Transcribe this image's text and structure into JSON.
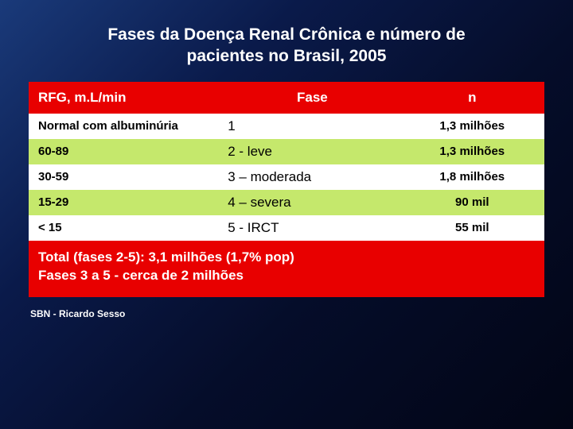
{
  "title_line1": "Fases da Doença Renal Crônica e número de",
  "title_line2": "pacientes no Brasil, 2005",
  "table": {
    "headers": {
      "col1": "RFG, m.L/min",
      "col2": "Fase",
      "col3": "n"
    },
    "rows": [
      {
        "col1": "Normal com albuminúria",
        "col2": "1",
        "col3": "1,3 milhões",
        "bg": "row-white"
      },
      {
        "col1": "60-89",
        "col2": "2 - leve",
        "col3": "1,3 milhões",
        "bg": "row-green"
      },
      {
        "col1": "30-59",
        "col2": "3 – moderada",
        "col3": "1,8 milhões",
        "bg": "row-white"
      },
      {
        "col1": "15-29",
        "col2": "4 – severa",
        "col3": "90 mil",
        "bg": "row-green"
      },
      {
        "col1": "< 15",
        "col2": "5 - IRCT",
        "col3": "55 mil",
        "bg": "row-white"
      }
    ],
    "footer_line1": "Total (fases 2-5): 3,1 milhões (1,7% pop)",
    "footer_line2": "Fases 3 a 5 - cerca de 2 milhões"
  },
  "source": "SBN - Ricardo Sesso",
  "colors": {
    "header_bg": "#e80000",
    "row_white": "#ffffff",
    "row_green": "#c5e86c",
    "title_color": "#ffffff"
  }
}
